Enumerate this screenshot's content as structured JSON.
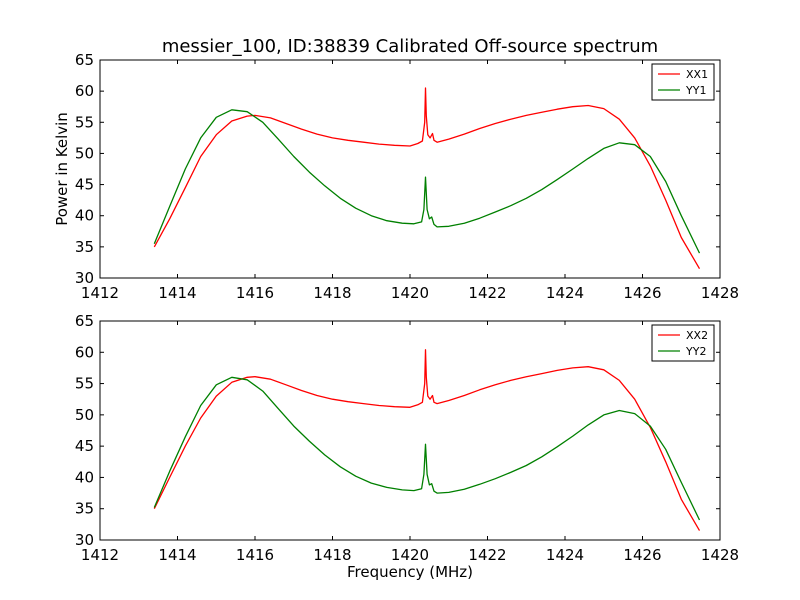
{
  "figure": {
    "title": "messier_100, ID:38839 Calibrated Off-source spectrum",
    "xlabel": "Frequency (MHz)",
    "ylabel": "Power in Kelvin",
    "colors": {
      "red": "#ff0000",
      "green": "#008000",
      "axis": "#000000"
    }
  },
  "chart_data": [
    {
      "type": "line",
      "title": "messier_100, ID:38839 Calibrated Off-source spectrum",
      "xlabel": "",
      "ylabel": "Power in Kelvin",
      "xlim": [
        1412,
        1428
      ],
      "ylim": [
        30,
        65
      ],
      "xticks": [
        1412,
        1414,
        1416,
        1418,
        1420,
        1422,
        1424,
        1426,
        1428
      ],
      "yticks": [
        30,
        35,
        40,
        45,
        50,
        55,
        60,
        65
      ],
      "grid": false,
      "legend": "top-right",
      "series": [
        {
          "name": "XX1",
          "color": "#ff0000",
          "x": [
            1413.4,
            1413.8,
            1414.2,
            1414.6,
            1415.0,
            1415.4,
            1415.8,
            1416.0,
            1416.4,
            1416.8,
            1417.2,
            1417.6,
            1418.0,
            1418.4,
            1418.8,
            1419.2,
            1419.6,
            1420.0,
            1420.2,
            1420.32,
            1420.38,
            1420.4,
            1420.42,
            1420.46,
            1420.52,
            1420.58,
            1420.62,
            1420.7,
            1421.0,
            1421.4,
            1421.8,
            1422.2,
            1422.6,
            1423.0,
            1423.4,
            1423.8,
            1424.2,
            1424.6,
            1425.0,
            1425.4,
            1425.8,
            1426.2,
            1426.6,
            1427.0,
            1427.47
          ],
          "y": [
            35.0,
            39.5,
            44.5,
            49.5,
            53.0,
            55.2,
            56.0,
            56.1,
            55.7,
            54.8,
            53.9,
            53.1,
            52.5,
            52.1,
            51.8,
            51.5,
            51.3,
            51.2,
            51.6,
            52.0,
            55.0,
            60.5,
            56.0,
            53.0,
            52.5,
            53.2,
            52.1,
            51.8,
            52.3,
            53.1,
            54.0,
            54.8,
            55.5,
            56.1,
            56.6,
            57.1,
            57.5,
            57.7,
            57.2,
            55.5,
            52.5,
            48.0,
            42.5,
            36.5,
            31.5
          ]
        },
        {
          "name": "YY1",
          "color": "#008000",
          "x": [
            1413.4,
            1413.8,
            1414.2,
            1414.6,
            1415.0,
            1415.4,
            1415.8,
            1416.2,
            1416.6,
            1417.0,
            1417.4,
            1417.8,
            1418.2,
            1418.6,
            1419.0,
            1419.4,
            1419.8,
            1420.1,
            1420.3,
            1420.36,
            1420.4,
            1420.44,
            1420.5,
            1420.56,
            1420.62,
            1420.7,
            1421.0,
            1421.4,
            1421.8,
            1422.2,
            1422.6,
            1423.0,
            1423.4,
            1423.8,
            1424.2,
            1424.6,
            1425.0,
            1425.4,
            1425.8,
            1426.2,
            1426.6,
            1427.0,
            1427.47
          ],
          "y": [
            35.5,
            41.5,
            47.5,
            52.5,
            55.8,
            57.0,
            56.7,
            55.0,
            52.3,
            49.5,
            47.0,
            44.8,
            42.8,
            41.2,
            40.0,
            39.2,
            38.8,
            38.7,
            39.0,
            41.0,
            46.2,
            41.0,
            39.5,
            39.8,
            38.6,
            38.2,
            38.3,
            38.8,
            39.6,
            40.6,
            41.6,
            42.8,
            44.2,
            45.8,
            47.5,
            49.2,
            50.8,
            51.7,
            51.4,
            49.5,
            45.5,
            40.0,
            34.0
          ]
        }
      ]
    },
    {
      "type": "line",
      "title": "",
      "xlabel": "Frequency (MHz)",
      "ylabel": "",
      "xlim": [
        1412,
        1428
      ],
      "ylim": [
        30,
        65
      ],
      "xticks": [
        1412,
        1414,
        1416,
        1418,
        1420,
        1422,
        1424,
        1426,
        1428
      ],
      "yticks": [
        30,
        35,
        40,
        45,
        50,
        55,
        60,
        65
      ],
      "grid": false,
      "legend": "top-right",
      "series": [
        {
          "name": "XX2",
          "color": "#ff0000",
          "x": [
            1413.4,
            1413.8,
            1414.2,
            1414.6,
            1415.0,
            1415.4,
            1415.8,
            1416.0,
            1416.4,
            1416.8,
            1417.2,
            1417.6,
            1418.0,
            1418.4,
            1418.8,
            1419.2,
            1419.6,
            1420.0,
            1420.2,
            1420.32,
            1420.38,
            1420.4,
            1420.42,
            1420.46,
            1420.52,
            1420.58,
            1420.62,
            1420.7,
            1421.0,
            1421.4,
            1421.8,
            1422.2,
            1422.6,
            1423.0,
            1423.4,
            1423.8,
            1424.2,
            1424.6,
            1425.0,
            1425.4,
            1425.8,
            1426.2,
            1426.6,
            1427.0,
            1427.47
          ],
          "y": [
            35.0,
            40.0,
            45.0,
            49.5,
            53.0,
            55.2,
            56.0,
            56.1,
            55.7,
            54.8,
            53.9,
            53.1,
            52.5,
            52.1,
            51.8,
            51.5,
            51.3,
            51.2,
            51.6,
            52.0,
            55.0,
            60.4,
            56.0,
            53.0,
            52.5,
            53.1,
            52.0,
            51.8,
            52.3,
            53.1,
            54.0,
            54.8,
            55.5,
            56.1,
            56.6,
            57.1,
            57.5,
            57.7,
            57.2,
            55.5,
            52.5,
            48.0,
            42.5,
            36.5,
            31.5
          ]
        },
        {
          "name": "YY2",
          "color": "#008000",
          "x": [
            1413.4,
            1413.8,
            1414.2,
            1414.6,
            1415.0,
            1415.4,
            1415.8,
            1416.2,
            1416.6,
            1417.0,
            1417.4,
            1417.8,
            1418.2,
            1418.6,
            1419.0,
            1419.4,
            1419.8,
            1420.1,
            1420.3,
            1420.36,
            1420.4,
            1420.44,
            1420.5,
            1420.56,
            1420.62,
            1420.7,
            1421.0,
            1421.4,
            1421.8,
            1422.2,
            1422.6,
            1423.0,
            1423.4,
            1423.8,
            1424.2,
            1424.6,
            1425.0,
            1425.4,
            1425.8,
            1426.2,
            1426.6,
            1427.0,
            1427.47
          ],
          "y": [
            35.2,
            41.0,
            46.5,
            51.5,
            54.8,
            56.0,
            55.6,
            53.8,
            51.0,
            48.2,
            45.8,
            43.6,
            41.7,
            40.2,
            39.1,
            38.4,
            38.0,
            37.9,
            38.2,
            40.5,
            45.3,
            40.5,
            38.8,
            39.0,
            37.8,
            37.5,
            37.6,
            38.1,
            38.9,
            39.8,
            40.8,
            41.9,
            43.3,
            44.9,
            46.6,
            48.4,
            50.0,
            50.7,
            50.2,
            48.2,
            44.5,
            39.2,
            33.2
          ]
        }
      ]
    }
  ]
}
